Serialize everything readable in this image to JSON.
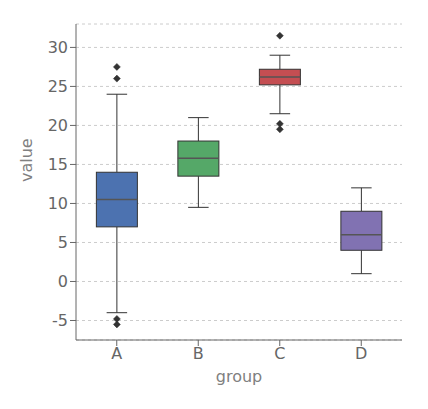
{
  "chart_data": {
    "type": "box",
    "xlabel": "group",
    "ylabel": "value",
    "categories": [
      "A",
      "B",
      "C",
      "D"
    ],
    "med": [
      10.5,
      15.8,
      26.2,
      6.0
    ],
    "q1": [
      7.0,
      13.5,
      25.2,
      4.0
    ],
    "q3": [
      14.0,
      18.0,
      27.2,
      9.0
    ],
    "whislo": [
      -4.0,
      9.5,
      21.5,
      1.0
    ],
    "whishi": [
      24.0,
      21.0,
      29.0,
      12.0
    ],
    "fliers": [
      [
        -5.5,
        -4.8,
        26.0,
        27.5
      ],
      [],
      [
        19.5,
        20.2,
        31.5
      ],
      []
    ],
    "colors": [
      "#4c72b0",
      "#55a868",
      "#c44e52",
      "#8172b2"
    ],
    "ylim": [
      -7.5,
      33
    ],
    "yticks": [
      -5,
      0,
      5,
      10,
      15,
      20,
      25,
      30
    ],
    "grid": true
  }
}
